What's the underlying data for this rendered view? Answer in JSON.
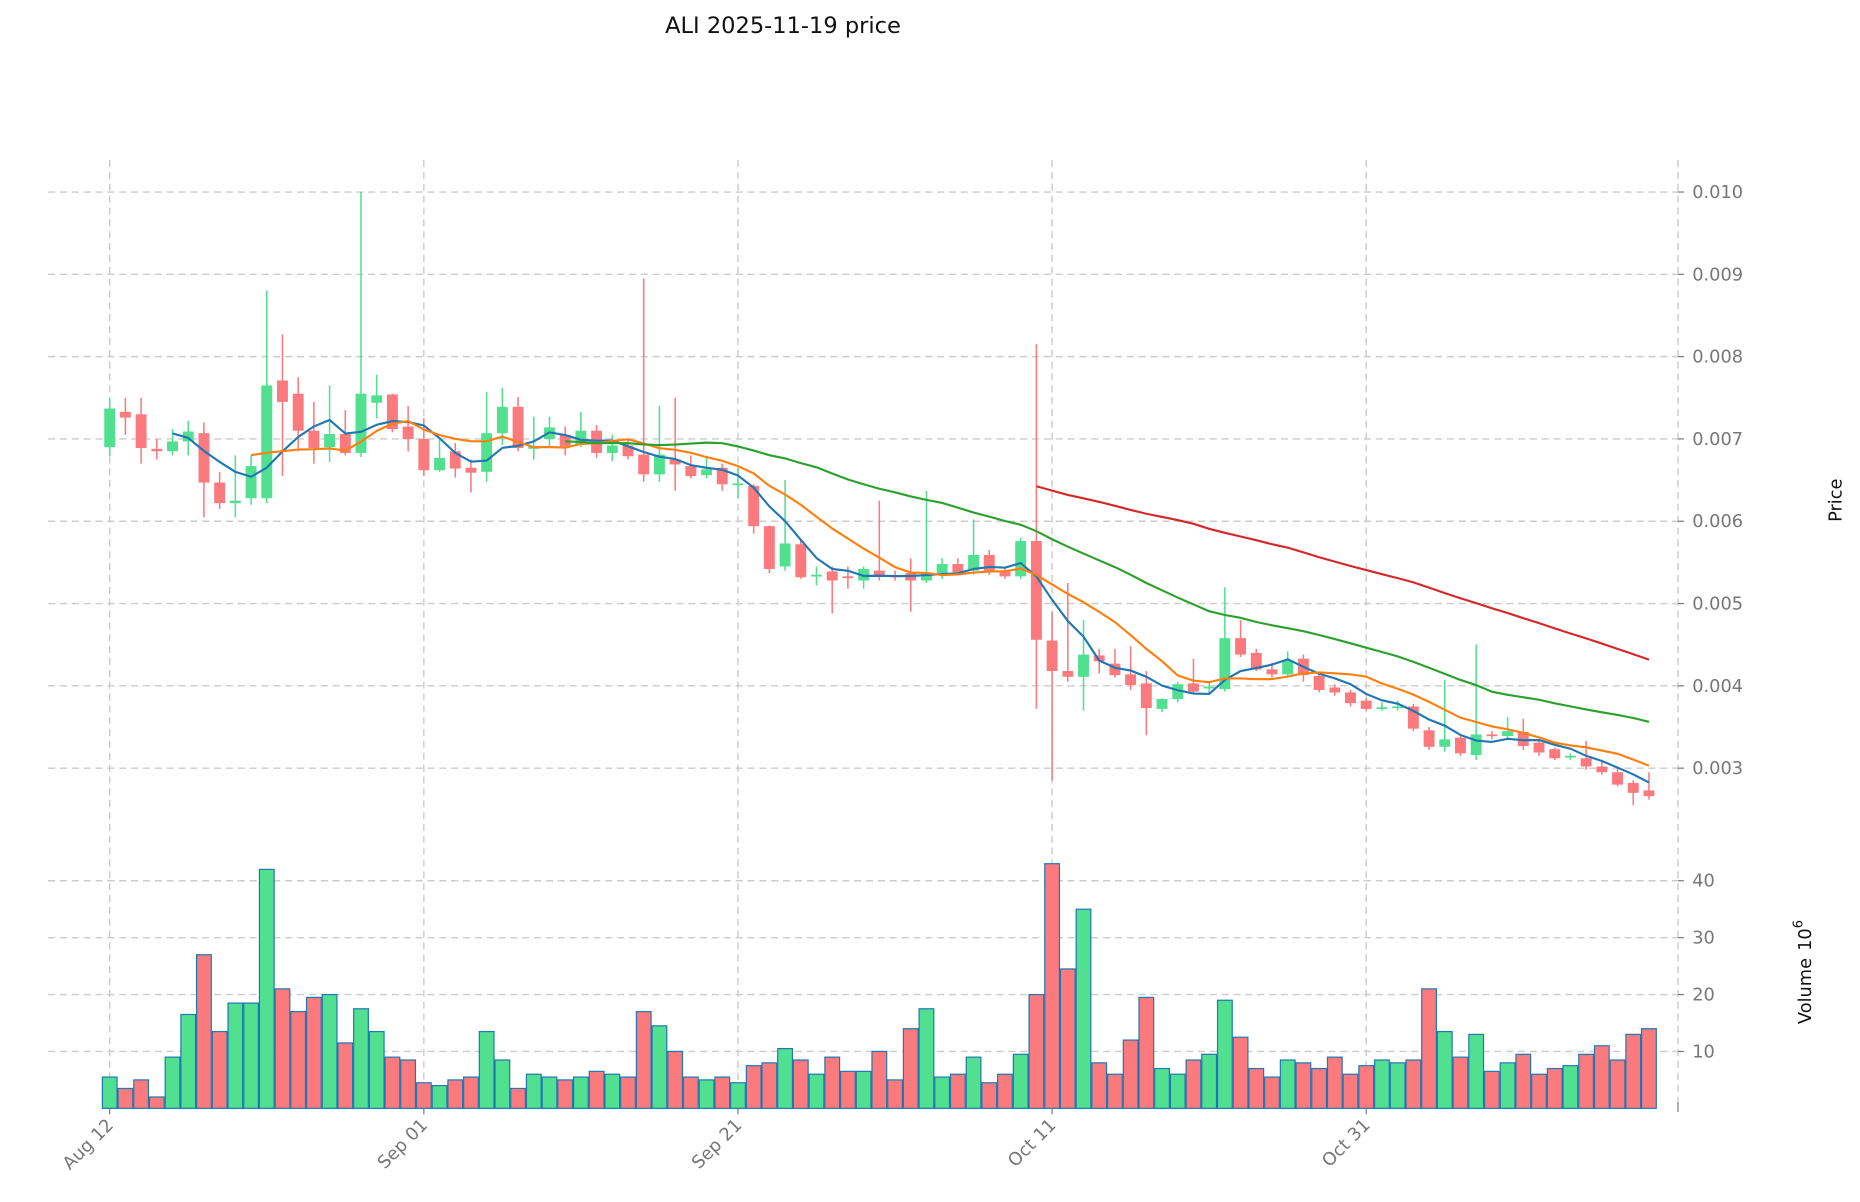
{
  "chart_data": {
    "type": "candlestick",
    "title": "ALI  2025-11-19  price",
    "price_label": "Price",
    "volume_label": "Volume",
    "volume_exponent_base": "10",
    "volume_exponent": "6",
    "price_ticks": [
      "0.003",
      "0.004",
      "0.005",
      "0.006",
      "0.007",
      "0.008",
      "0.009",
      "0.010"
    ],
    "price_ylim": [
      0.0025,
      0.0104
    ],
    "volume_ticks": [
      "10",
      "20",
      "30",
      "40"
    ],
    "volume_ylim": [
      0,
      44
    ],
    "x_ticks": [
      {
        "index": 0,
        "label": "Aug 12"
      },
      {
        "index": 20,
        "label": "Sep 01"
      },
      {
        "index": 40,
        "label": "Sep 21"
      },
      {
        "index": 60,
        "label": "Oct 11"
      },
      {
        "index": 80,
        "label": "Oct 31"
      }
    ],
    "moving_averages": [
      {
        "window": 5,
        "color": "#1f77b4"
      },
      {
        "window": 10,
        "color": "#ff7f0e"
      },
      {
        "window": 30,
        "color": "#2ca02c"
      },
      {
        "window": 60,
        "color": "#d62728"
      }
    ],
    "colors": {
      "up": "#50e090",
      "down": "#fa7a7e",
      "volume_edge": "#1f77b4"
    },
    "grid": true,
    "candles_fields": [
      "open",
      "high",
      "low",
      "close",
      "volume_millions"
    ],
    "candles": [
      [
        0.0069,
        0.0075,
        0.00679,
        0.00737,
        5.5
      ],
      [
        0.00733,
        0.0075,
        0.00705,
        0.00726,
        3.5
      ],
      [
        0.0073,
        0.0075,
        0.0067,
        0.00689,
        5
      ],
      [
        0.00688,
        0.007,
        0.00675,
        0.00685,
        2
      ],
      [
        0.00685,
        0.00712,
        0.0068,
        0.00697,
        9
      ],
      [
        0.00697,
        0.00722,
        0.0068,
        0.00709,
        16.5
      ],
      [
        0.00707,
        0.0072,
        0.00605,
        0.00647,
        27
      ],
      [
        0.00647,
        0.0066,
        0.00615,
        0.00622,
        13.5
      ],
      [
        0.00622,
        0.0068,
        0.00605,
        0.00625,
        18.5
      ],
      [
        0.00628,
        0.0068,
        0.0062,
        0.00667,
        18.5
      ],
      [
        0.00628,
        0.0088,
        0.00622,
        0.00765,
        42
      ],
      [
        0.00771,
        0.00827,
        0.00655,
        0.00745,
        21
      ],
      [
        0.00755,
        0.00775,
        0.00685,
        0.0071,
        17
      ],
      [
        0.0071,
        0.00745,
        0.0067,
        0.00689,
        19.5
      ],
      [
        0.0069,
        0.00765,
        0.00672,
        0.00706,
        20
      ],
      [
        0.00706,
        0.00735,
        0.0068,
        0.00683,
        11.5
      ],
      [
        0.00683,
        0.01,
        0.00678,
        0.00755,
        17.5
      ],
      [
        0.00744,
        0.00778,
        0.00725,
        0.00753,
        13.5
      ],
      [
        0.00754,
        0.00755,
        0.00708,
        0.00712,
        9
      ],
      [
        0.00715,
        0.0074,
        0.00685,
        0.007,
        8.5
      ],
      [
        0.007,
        0.00725,
        0.00655,
        0.00662,
        4.5
      ],
      [
        0.00662,
        0.007,
        0.0066,
        0.00677,
        4
      ],
      [
        0.00685,
        0.00695,
        0.00653,
        0.00664,
        5
      ],
      [
        0.00665,
        0.00675,
        0.00635,
        0.00659,
        5.5
      ],
      [
        0.0066,
        0.00757,
        0.00648,
        0.00707,
        13.5
      ],
      [
        0.00707,
        0.00762,
        0.00693,
        0.00739,
        8.5
      ],
      [
        0.00739,
        0.00751,
        0.00685,
        0.00689,
        3.5
      ],
      [
        0.00688,
        0.00727,
        0.00675,
        0.00691,
        6
      ],
      [
        0.007,
        0.00727,
        0.0069,
        0.00714,
        5.5
      ],
      [
        0.00705,
        0.00715,
        0.0068,
        0.00691,
        5
      ],
      [
        0.00693,
        0.00733,
        0.0069,
        0.0071,
        5.5
      ],
      [
        0.0071,
        0.00717,
        0.00677,
        0.00683,
        6.5
      ],
      [
        0.00683,
        0.00705,
        0.00673,
        0.00692,
        6
      ],
      [
        0.00692,
        0.007,
        0.00675,
        0.00679,
        5.5
      ],
      [
        0.00681,
        0.00895,
        0.00648,
        0.00657,
        17
      ],
      [
        0.00657,
        0.0074,
        0.00648,
        0.00681,
        14.5
      ],
      [
        0.00675,
        0.0075,
        0.00637,
        0.00669,
        10
      ],
      [
        0.00667,
        0.0068,
        0.00652,
        0.00655,
        5.5
      ],
      [
        0.00656,
        0.00678,
        0.00652,
        0.00663,
        5
      ],
      [
        0.00665,
        0.0067,
        0.00637,
        0.00645,
        5.5
      ],
      [
        0.00644,
        0.00665,
        0.00628,
        0.00646,
        4.5
      ],
      [
        0.00643,
        0.00645,
        0.00585,
        0.00594,
        7.5
      ],
      [
        0.00594,
        0.00595,
        0.00537,
        0.00542,
        8
      ],
      [
        0.00545,
        0.0065,
        0.0054,
        0.00573,
        10.5
      ],
      [
        0.00572,
        0.00578,
        0.0053,
        0.00532,
        8.5
      ],
      [
        0.00533,
        0.00545,
        0.00522,
        0.00535,
        6
      ],
      [
        0.00539,
        0.00545,
        0.00488,
        0.00528,
        9
      ],
      [
        0.00533,
        0.00545,
        0.00518,
        0.00531,
        6.5
      ],
      [
        0.00528,
        0.00545,
        0.00518,
        0.00542,
        6.5
      ],
      [
        0.0054,
        0.00625,
        0.00528,
        0.00533,
        10
      ],
      [
        0.00534,
        0.0054,
        0.00528,
        0.00533,
        5
      ],
      [
        0.00537,
        0.00555,
        0.0049,
        0.00528,
        14
      ],
      [
        0.00528,
        0.00637,
        0.00525,
        0.00537,
        17.5
      ],
      [
        0.00537,
        0.00555,
        0.0053,
        0.00548,
        5.5
      ],
      [
        0.00548,
        0.00555,
        0.00535,
        0.00538,
        6
      ],
      [
        0.0054,
        0.00602,
        0.00535,
        0.00559,
        9
      ],
      [
        0.00559,
        0.00565,
        0.00535,
        0.0054,
        4.5
      ],
      [
        0.0054,
        0.00545,
        0.0053,
        0.00533,
        6
      ],
      [
        0.00533,
        0.0058,
        0.0053,
        0.00576,
        9.5
      ],
      [
        0.00576,
        0.00815,
        0.00372,
        0.00456,
        20
      ],
      [
        0.00455,
        0.0049,
        0.00285,
        0.00418,
        43
      ],
      [
        0.00418,
        0.00525,
        0.00405,
        0.00411,
        24.5
      ],
      [
        0.00411,
        0.0048,
        0.0037,
        0.00438,
        35
      ],
      [
        0.00437,
        0.00445,
        0.00415,
        0.0043,
        8
      ],
      [
        0.00427,
        0.00445,
        0.0041,
        0.00413,
        6
      ],
      [
        0.00414,
        0.00448,
        0.00395,
        0.00401,
        12
      ],
      [
        0.00403,
        0.00418,
        0.0034,
        0.00373,
        19.5
      ],
      [
        0.00372,
        0.00385,
        0.00368,
        0.00384,
        7
      ],
      [
        0.00384,
        0.00405,
        0.0038,
        0.00402,
        6
      ],
      [
        0.00403,
        0.00433,
        0.0039,
        0.00393,
        8.5
      ],
      [
        0.00397,
        0.00405,
        0.0039,
        0.00399,
        9.5
      ],
      [
        0.00396,
        0.0052,
        0.00393,
        0.00458,
        19
      ],
      [
        0.00458,
        0.0048,
        0.00435,
        0.00438,
        12.5
      ],
      [
        0.0044,
        0.00445,
        0.00418,
        0.0042,
        7
      ],
      [
        0.0042,
        0.00428,
        0.0041,
        0.00414,
        5.5
      ],
      [
        0.00414,
        0.00442,
        0.0041,
        0.00431,
        8.5
      ],
      [
        0.00433,
        0.00438,
        0.00405,
        0.00413,
        8
      ],
      [
        0.00412,
        0.00415,
        0.00392,
        0.00395,
        7
      ],
      [
        0.00398,
        0.00402,
        0.00388,
        0.00392,
        9
      ],
      [
        0.00392,
        0.00395,
        0.00375,
        0.00379,
        6
      ],
      [
        0.00382,
        0.00385,
        0.0037,
        0.00372,
        7.5
      ],
      [
        0.00372,
        0.0038,
        0.0037,
        0.00374,
        8.5
      ],
      [
        0.00374,
        0.00382,
        0.0037,
        0.00375,
        8
      ],
      [
        0.00375,
        0.00378,
        0.00345,
        0.00348,
        8.5
      ],
      [
        0.00346,
        0.0035,
        0.00322,
        0.00326,
        21
      ],
      [
        0.00326,
        0.00407,
        0.0032,
        0.00335,
        13.5
      ],
      [
        0.00337,
        0.0034,
        0.00315,
        0.00318,
        9
      ],
      [
        0.00316,
        0.0045,
        0.0031,
        0.00341,
        13
      ],
      [
        0.00341,
        0.00345,
        0.00335,
        0.00339,
        6.5
      ],
      [
        0.00339,
        0.00362,
        0.00335,
        0.00345,
        8
      ],
      [
        0.00344,
        0.0036,
        0.00322,
        0.00327,
        9.5
      ],
      [
        0.00331,
        0.00335,
        0.00315,
        0.00319,
        6
      ],
      [
        0.00323,
        0.00325,
        0.0031,
        0.00312,
        7
      ],
      [
        0.00313,
        0.00318,
        0.0031,
        0.00315,
        7.5
      ],
      [
        0.00312,
        0.00333,
        0.00298,
        0.00302,
        9.5
      ],
      [
        0.00302,
        0.0031,
        0.00292,
        0.00295,
        11
      ],
      [
        0.00295,
        0.003,
        0.00278,
        0.0028,
        8.5
      ],
      [
        0.00282,
        0.00285,
        0.00255,
        0.0027,
        13
      ],
      [
        0.00273,
        0.00295,
        0.00262,
        0.00266,
        14
      ]
    ]
  }
}
